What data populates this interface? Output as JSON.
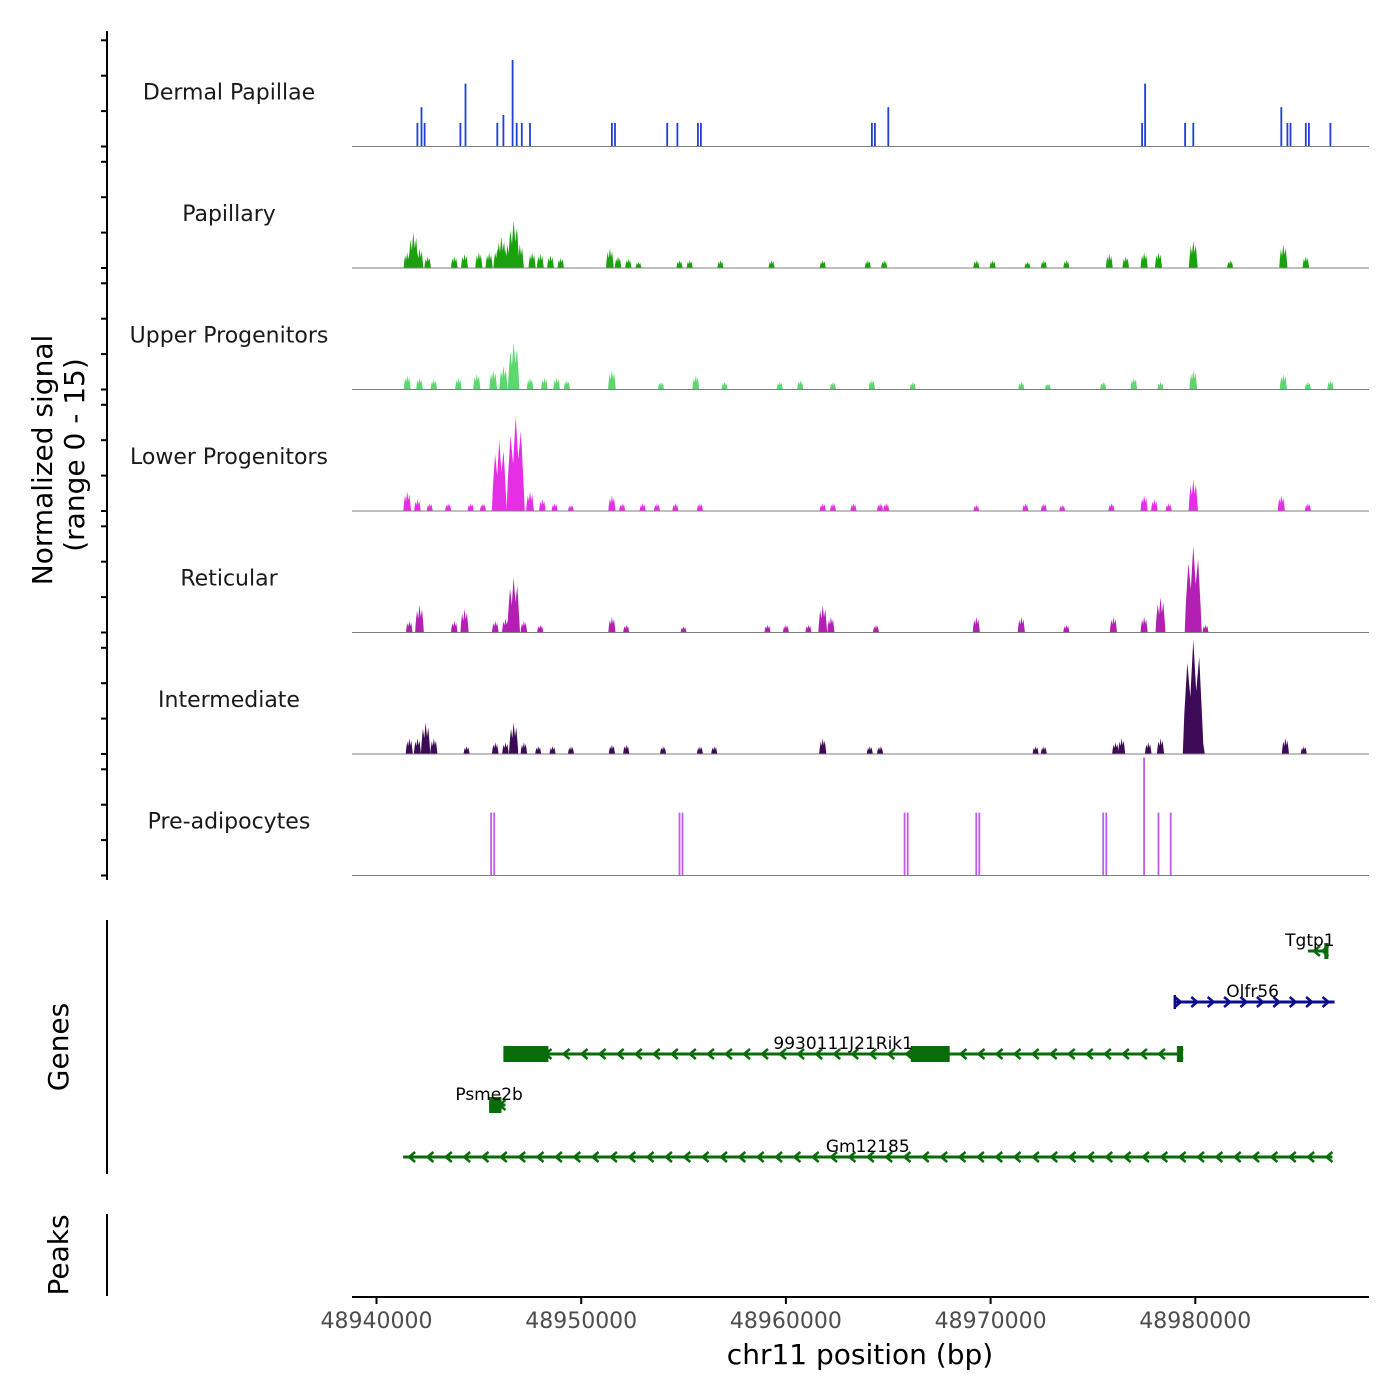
{
  "chart_data": {
    "type": "genome-coverage",
    "chromosome": "chr11",
    "xlabel": "chr11 position (bp)",
    "xlim": [
      48939000,
      48989000
    ],
    "xticks": [
      48940000,
      48950000,
      48960000,
      48970000,
      48980000
    ],
    "xtick_labels": [
      "48940000",
      "48950000",
      "48960000",
      "48970000",
      "48980000"
    ],
    "coverage": {
      "ylabel_line1": "Normalized signal",
      "ylabel_line2": "(range 0 - 15)",
      "ylim": [
        0,
        15
      ],
      "tracks": [
        {
          "name": "Dermal Papillae",
          "color": "#1f3fd6",
          "style": "lines",
          "peaks": [
            [
              48942000,
              3
            ],
            [
              48942200,
              5
            ],
            [
              48942350,
              3
            ],
            [
              48944100,
              3
            ],
            [
              48944350,
              8
            ],
            [
              48945900,
              3
            ],
            [
              48946200,
              4
            ],
            [
              48946650,
              11
            ],
            [
              48946850,
              3
            ],
            [
              48947100,
              3
            ],
            [
              48947500,
              3
            ],
            [
              48951500,
              3
            ],
            [
              48951650,
              3
            ],
            [
              48954200,
              3
            ],
            [
              48954700,
              3
            ],
            [
              48955700,
              3
            ],
            [
              48955850,
              3
            ],
            [
              48964200,
              3
            ],
            [
              48964350,
              3
            ],
            [
              48965000,
              5
            ],
            [
              48977400,
              3
            ],
            [
              48977550,
              8
            ],
            [
              48979500,
              3
            ],
            [
              48979900,
              3
            ],
            [
              48984200,
              5
            ],
            [
              48984500,
              3
            ],
            [
              48984650,
              3
            ],
            [
              48985400,
              3
            ],
            [
              48985550,
              3
            ],
            [
              48986600,
              3
            ]
          ]
        },
        {
          "name": "Papillary",
          "color": "#1aa10d",
          "style": "area",
          "peaks": [
            [
              48941500,
              2
            ],
            [
              48941800,
              4.5
            ],
            [
              48942100,
              2.5
            ],
            [
              48942500,
              1.5
            ],
            [
              48943800,
              1.5
            ],
            [
              48944300,
              1.8
            ],
            [
              48945000,
              2
            ],
            [
              48945500,
              2
            ],
            [
              48945900,
              2.5
            ],
            [
              48946100,
              4
            ],
            [
              48946400,
              3
            ],
            [
              48946700,
              6
            ],
            [
              48947000,
              3
            ],
            [
              48947600,
              2
            ],
            [
              48948000,
              1.8
            ],
            [
              48948500,
              1.6
            ],
            [
              48949000,
              1.3
            ],
            [
              48951400,
              2.5
            ],
            [
              48951800,
              1.5
            ],
            [
              48952300,
              1.2
            ],
            [
              48952800,
              0.8
            ],
            [
              48954800,
              1
            ],
            [
              48955300,
              1
            ],
            [
              48956800,
              1
            ],
            [
              48959300,
              1
            ],
            [
              48961800,
              1
            ],
            [
              48964000,
              1
            ],
            [
              48964800,
              1
            ],
            [
              48969300,
              1
            ],
            [
              48970100,
              1
            ],
            [
              48971800,
              0.8
            ],
            [
              48972600,
              1
            ],
            [
              48973700,
              1
            ],
            [
              48975800,
              1.8
            ],
            [
              48976600,
              1.5
            ],
            [
              48977500,
              2
            ],
            [
              48978200,
              2
            ],
            [
              48979900,
              3.5
            ],
            [
              48981700,
              1
            ],
            [
              48984300,
              3
            ],
            [
              48985400,
              1.5
            ]
          ]
        },
        {
          "name": "Upper Progenitors",
          "color": "#5dd66e",
          "style": "area",
          "peaks": [
            [
              48941500,
              1.8
            ],
            [
              48942100,
              1.5
            ],
            [
              48942800,
              1.3
            ],
            [
              48944000,
              1.5
            ],
            [
              48944900,
              2
            ],
            [
              48945700,
              2.5
            ],
            [
              48946200,
              3
            ],
            [
              48946700,
              6
            ],
            [
              48947500,
              1.5
            ],
            [
              48948200,
              1.5
            ],
            [
              48948800,
              1.5
            ],
            [
              48949300,
              1.2
            ],
            [
              48951500,
              2.5
            ],
            [
              48953900,
              1
            ],
            [
              48955600,
              1.8
            ],
            [
              48957000,
              1
            ],
            [
              48959700,
              1
            ],
            [
              48960700,
              1.2
            ],
            [
              48962300,
              1
            ],
            [
              48964200,
              1.3
            ],
            [
              48966200,
              1
            ],
            [
              48971500,
              1
            ],
            [
              48972800,
              0.8
            ],
            [
              48975500,
              1
            ],
            [
              48977000,
              1.5
            ],
            [
              48978300,
              1
            ],
            [
              48979900,
              2.5
            ],
            [
              48984300,
              2
            ],
            [
              48985500,
              1
            ],
            [
              48986600,
              1.2
            ]
          ]
        },
        {
          "name": "Lower Progenitors",
          "color": "#e62ee6",
          "style": "area",
          "peaks": [
            [
              48941500,
              2.5
            ],
            [
              48942000,
              1.5
            ],
            [
              48942600,
              1
            ],
            [
              48943500,
              1
            ],
            [
              48944600,
              1
            ],
            [
              48945200,
              1
            ],
            [
              48946000,
              9
            ],
            [
              48946800,
              12
            ],
            [
              48947500,
              2.5
            ],
            [
              48948100,
              1.5
            ],
            [
              48948700,
              1
            ],
            [
              48949500,
              0.8
            ],
            [
              48951500,
              2
            ],
            [
              48952000,
              1
            ],
            [
              48953000,
              1
            ],
            [
              48953700,
              1
            ],
            [
              48954600,
              1
            ],
            [
              48955800,
              1
            ],
            [
              48961800,
              1
            ],
            [
              48962300,
              1
            ],
            [
              48963300,
              1
            ],
            [
              48964600,
              1
            ],
            [
              48964900,
              1
            ],
            [
              48969300,
              0.8
            ],
            [
              48971700,
              1
            ],
            [
              48972600,
              1
            ],
            [
              48973500,
              0.8
            ],
            [
              48975900,
              1
            ],
            [
              48977500,
              2
            ],
            [
              48978000,
              1.5
            ],
            [
              48978700,
              1
            ],
            [
              48979900,
              4
            ],
            [
              48984200,
              2
            ],
            [
              48985500,
              1
            ]
          ]
        },
        {
          "name": "Reticular",
          "color": "#b31fb3",
          "style": "area",
          "peaks": [
            [
              48941600,
              1.5
            ],
            [
              48942100,
              3.5
            ],
            [
              48943800,
              1.5
            ],
            [
              48944300,
              3
            ],
            [
              48945800,
              1.5
            ],
            [
              48946300,
              1.8
            ],
            [
              48946700,
              7
            ],
            [
              48947200,
              1.5
            ],
            [
              48948000,
              1
            ],
            [
              48951500,
              2
            ],
            [
              48952200,
              1
            ],
            [
              48955000,
              0.8
            ],
            [
              48959100,
              1
            ],
            [
              48960000,
              1
            ],
            [
              48961100,
              1
            ],
            [
              48961800,
              3.5
            ],
            [
              48962200,
              2
            ],
            [
              48964400,
              1
            ],
            [
              48969300,
              2
            ],
            [
              48971500,
              2
            ],
            [
              48973700,
              1
            ],
            [
              48976000,
              2
            ],
            [
              48977500,
              2
            ],
            [
              48978300,
              4.5
            ],
            [
              48979900,
              11
            ],
            [
              48980500,
              1
            ]
          ]
        },
        {
          "name": "Intermediate",
          "color": "#3d0a57",
          "style": "area",
          "peaks": [
            [
              48941600,
              2
            ],
            [
              48942000,
              2
            ],
            [
              48942400,
              4
            ],
            [
              48942800,
              2
            ],
            [
              48944400,
              1
            ],
            [
              48945800,
              1.5
            ],
            [
              48946300,
              1.5
            ],
            [
              48946700,
              4
            ],
            [
              48947200,
              1.5
            ],
            [
              48947900,
              1
            ],
            [
              48948600,
              1
            ],
            [
              48949500,
              1
            ],
            [
              48951500,
              1.2
            ],
            [
              48952200,
              1.2
            ],
            [
              48954000,
              1
            ],
            [
              48955800,
              1
            ],
            [
              48956500,
              1
            ],
            [
              48961800,
              2
            ],
            [
              48964100,
              1
            ],
            [
              48964600,
              1
            ],
            [
              48972200,
              1
            ],
            [
              48972600,
              1
            ],
            [
              48976100,
              1.5
            ],
            [
              48976400,
              2
            ],
            [
              48977700,
              1.5
            ],
            [
              48978300,
              2
            ],
            [
              48979900,
              14.5
            ],
            [
              48980300,
              1.5
            ],
            [
              48984400,
              2
            ],
            [
              48985300,
              1
            ]
          ]
        },
        {
          "name": "Pre-adipocytes",
          "color": "#c05cf2",
          "style": "lines",
          "peaks": [
            [
              48945600,
              8
            ],
            [
              48945750,
              8
            ],
            [
              48954800,
              8
            ],
            [
              48954950,
              8
            ],
            [
              48965800,
              8
            ],
            [
              48965950,
              8
            ],
            [
              48969300,
              8
            ],
            [
              48969450,
              8
            ],
            [
              48975500,
              8
            ],
            [
              48975650,
              8
            ],
            [
              48977500,
              15
            ],
            [
              48978200,
              8
            ],
            [
              48978800,
              8
            ]
          ]
        }
      ]
    },
    "genes": {
      "ylabel": "Genes",
      "items": [
        {
          "name": "Tgtp1",
          "start": 48985500,
          "end": 48986500,
          "strand": "-",
          "color": "#0a6b0a",
          "exons": [
            [
              48986300,
              48986500
            ]
          ]
        },
        {
          "name": "Olfr56",
          "start": 48979000,
          "end": 48986800,
          "strand": "+",
          "color": "#0d0d8c",
          "exons": []
        },
        {
          "name": "9930111J21Rik1",
          "start": 48946200,
          "end": 48979400,
          "strand": "-",
          "color": "#0a6b0a",
          "exons": [
            [
              48946200,
              48948400
            ],
            [
              48966100,
              48968000
            ],
            [
              48979100,
              48979400
            ]
          ]
        },
        {
          "name": "Psme2b",
          "start": 48945500,
          "end": 48946300,
          "strand": "-",
          "color": "#0a6b0a",
          "exons": [
            [
              48945500,
              48946100
            ]
          ]
        },
        {
          "name": "Gm12185",
          "start": 48941300,
          "end": 48986700,
          "strand": "-",
          "color": "#0a6b0a",
          "exons": []
        }
      ]
    },
    "peaks": {
      "ylabel": "Peaks",
      "items": []
    }
  }
}
